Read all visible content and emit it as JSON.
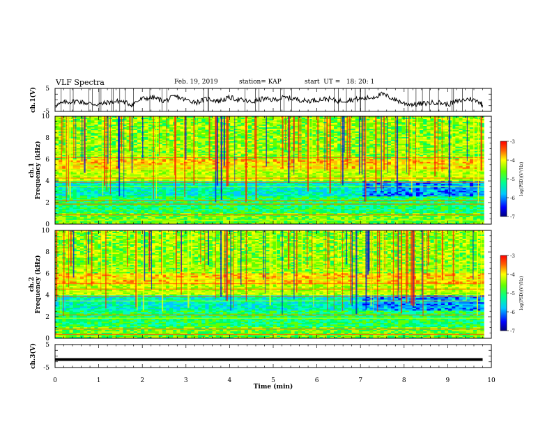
{
  "header": {
    "title": "VLF Spectra",
    "date": "Feb. 19, 2019",
    "station": "station= KAP",
    "start": "start  UT =   18: 20: 1"
  },
  "chart_data": [
    {
      "type": "line",
      "panel": "ch1-waveform",
      "ylabel": "ch.1(V)",
      "ylim": [
        -5,
        5
      ],
      "y_ticks": [
        "5",
        "-5"
      ],
      "x": [
        0,
        0.25,
        0.5,
        0.75,
        1.0,
        1.25,
        1.5,
        1.75,
        2.0,
        2.25,
        2.5,
        2.75,
        3.0,
        3.25,
        3.5,
        3.75,
        4.0,
        4.25,
        4.5,
        4.75,
        5.0,
        5.25,
        5.5,
        5.75,
        6.0,
        6.25,
        6.5,
        6.75,
        7.0,
        7.25,
        7.5,
        7.75,
        8.0,
        8.25,
        8.5,
        8.75,
        9.0,
        9.25,
        9.5,
        9.75,
        9.8
      ],
      "values": [
        -2.5,
        -1.0,
        -0.5,
        -1.5,
        -2.0,
        -1.0,
        -0.5,
        -2.0,
        0.5,
        1.0,
        -0.5,
        1.5,
        0.0,
        -1.0,
        0.5,
        -0.5,
        1.0,
        0.0,
        -1.0,
        0.5,
        0.0,
        1.0,
        0.5,
        -0.5,
        0.0,
        0.5,
        -0.5,
        0.0,
        0.5,
        1.0,
        2.5,
        0.5,
        -1.5,
        -2.0,
        -1.5,
        -1.0,
        -2.0,
        -0.5,
        0.5,
        -1.0,
        -2.5
      ]
    },
    {
      "type": "heatmap",
      "panel": "ch1-spectrogram",
      "ylabel": "ch.1\nFrequency (kHz)",
      "ylim": [
        0,
        10
      ],
      "y_ticks": [
        "0",
        "2",
        "4",
        "6",
        "8",
        "10"
      ],
      "colorbar": {
        "label": "log(PSD)(V²/Hz)",
        "range": [
          -7,
          -3
        ],
        "ticks": [
          "-3",
          "-4",
          "-5",
          "-6",
          "-7"
        ]
      }
    },
    {
      "type": "heatmap",
      "panel": "ch2-spectrogram",
      "ylabel": "ch.2\nFrequency (kHz)",
      "ylim": [
        0,
        10
      ],
      "y_ticks": [
        "0",
        "2",
        "4",
        "6",
        "8",
        "10"
      ],
      "colorbar": {
        "label": "log(PSD)(V²/Hz)",
        "range": [
          -7,
          -3
        ],
        "ticks": [
          "-3",
          "-4",
          "-5",
          "-6",
          "-7"
        ]
      }
    },
    {
      "type": "line",
      "panel": "ch3-waveform",
      "ylabel": "ch.3(V)",
      "ylim": [
        -5,
        5
      ],
      "y_ticks": [
        "5",
        "-5"
      ],
      "x": [
        0,
        9.8
      ],
      "values": [
        -1.5,
        -1.5
      ]
    }
  ],
  "x_axis": {
    "label": "Time (min)",
    "range": [
      0,
      10
    ],
    "ticks": [
      "0",
      "1",
      "2",
      "3",
      "4",
      "5",
      "6",
      "7",
      "8",
      "9",
      "10"
    ]
  }
}
